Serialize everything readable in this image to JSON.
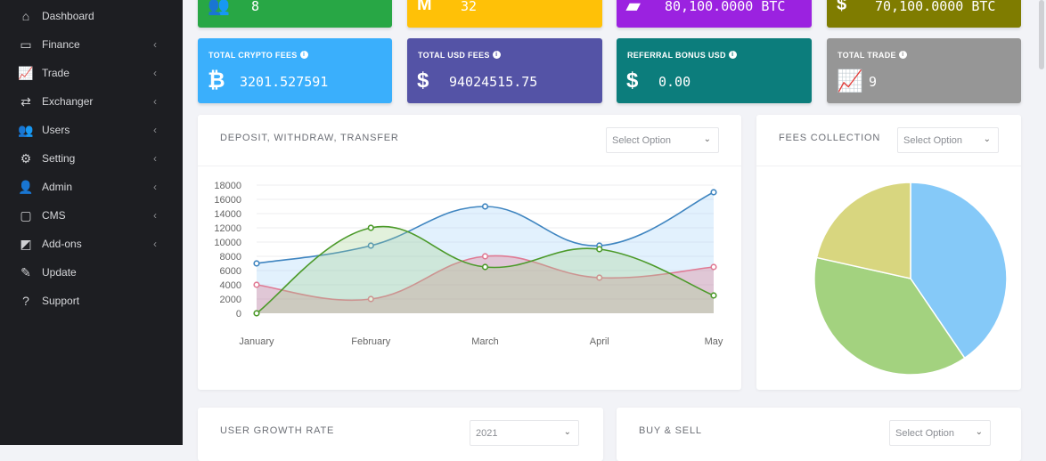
{
  "sidebar": {
    "items": [
      {
        "label": "Dashboard",
        "icon": "home-icon",
        "glyph": "⌂",
        "chevron": false
      },
      {
        "label": "Finance",
        "icon": "credit-card-icon",
        "glyph": "▭",
        "chevron": true
      },
      {
        "label": "Trade",
        "icon": "chart-icon",
        "glyph": "📈",
        "chevron": true
      },
      {
        "label": "Exchanger",
        "icon": "exchange-icon",
        "glyph": "⇄",
        "chevron": true
      },
      {
        "label": "Users",
        "icon": "users-icon",
        "glyph": "👥",
        "chevron": true
      },
      {
        "label": "Setting",
        "icon": "gear-icon",
        "glyph": "⚙",
        "chevron": true
      },
      {
        "label": "Admin",
        "icon": "user-tie-icon",
        "glyph": "👤",
        "chevron": true
      },
      {
        "label": "CMS",
        "icon": "comment-icon",
        "glyph": "▢",
        "chevron": true
      },
      {
        "label": "Add-ons",
        "icon": "share-icon",
        "glyph": "◩",
        "chevron": true
      },
      {
        "label": "Update",
        "icon": "magic-wand-icon",
        "glyph": "✎",
        "chevron": false
      },
      {
        "label": "Support",
        "icon": "question-circle-icon",
        "glyph": "?",
        "chevron": false
      }
    ],
    "chevron_glyph": "‹"
  },
  "top_cards": [
    {
      "value": "8",
      "icon": "users-icon",
      "glyph": "👥",
      "color": "#28a745"
    },
    {
      "value": "32",
      "icon": "medium-icon",
      "glyph": "M",
      "color": "#ffc107"
    },
    {
      "value": "80,100.0000 BTC",
      "icon": "briefcase-icon",
      "glyph": "▰",
      "color": "#9b22e0"
    },
    {
      "value": "70,100.0000 BTC",
      "icon": "dollar-badge-icon",
      "glyph": "$",
      "color": "#7f7c00"
    }
  ],
  "stat_cards": [
    {
      "title": "TOTAL CRYPTO FEES",
      "value": "3201.527591",
      "icon": "bitcoin-icon",
      "glyph": "₿",
      "color": "#3aaffc"
    },
    {
      "title": "TOTAL USD FEES",
      "value": "94024515.75",
      "icon": "hand-dollar-icon",
      "glyph": "$",
      "color": "#5453a6"
    },
    {
      "title": "REFERRAL BONUS USD",
      "value": "0.00",
      "icon": "dollar-icon",
      "glyph": "$",
      "color": "#0c7d7c"
    },
    {
      "title": "TOTAL TRADE",
      "value": "9",
      "icon": "chart-icon",
      "glyph": "📈",
      "color": "#969696"
    }
  ],
  "info_glyph": "i",
  "panels": {
    "deposit": {
      "title": "DEPOSIT, WITHDRAW, TRANSFER",
      "select": "Select Option"
    },
    "fees": {
      "title": "FEES COLLECTION",
      "select": "Select Option"
    },
    "growth": {
      "title": "USER GROWTH RATE",
      "select": "2021"
    },
    "buysell": {
      "title": "BUY & SELL",
      "select": "Select Option"
    },
    "chevron_glyph": "⌄"
  },
  "chart_data": [
    {
      "type": "line",
      "categories": [
        "January",
        "February",
        "March",
        "April",
        "May"
      ],
      "ylim": [
        0,
        18000
      ],
      "yticks": [
        "0",
        "2000",
        "4000",
        "6000",
        "8000",
        "10000",
        "12000",
        "14000",
        "16000",
        "18000"
      ],
      "grid": true,
      "series": [
        {
          "values": [
            7000,
            9500,
            15000,
            9500,
            17000
          ],
          "color": "#3f85c0",
          "fill": "rgba(173,216,250,0.35)"
        },
        {
          "values": [
            4000,
            2000,
            8000,
            5000,
            6500
          ],
          "color": "#e07a94",
          "fill": "rgba(220,120,140,0.35)"
        },
        {
          "values": [
            0,
            12000,
            6500,
            9000,
            2500
          ],
          "color": "#4c9a2a",
          "fill": "rgba(160,210,140,0.3)"
        }
      ]
    },
    {
      "type": "pie",
      "values": [
        40.5,
        38,
        21.5
      ],
      "colors": [
        "#85c9f8",
        "#a3d27f",
        "#d8d67f"
      ]
    }
  ]
}
